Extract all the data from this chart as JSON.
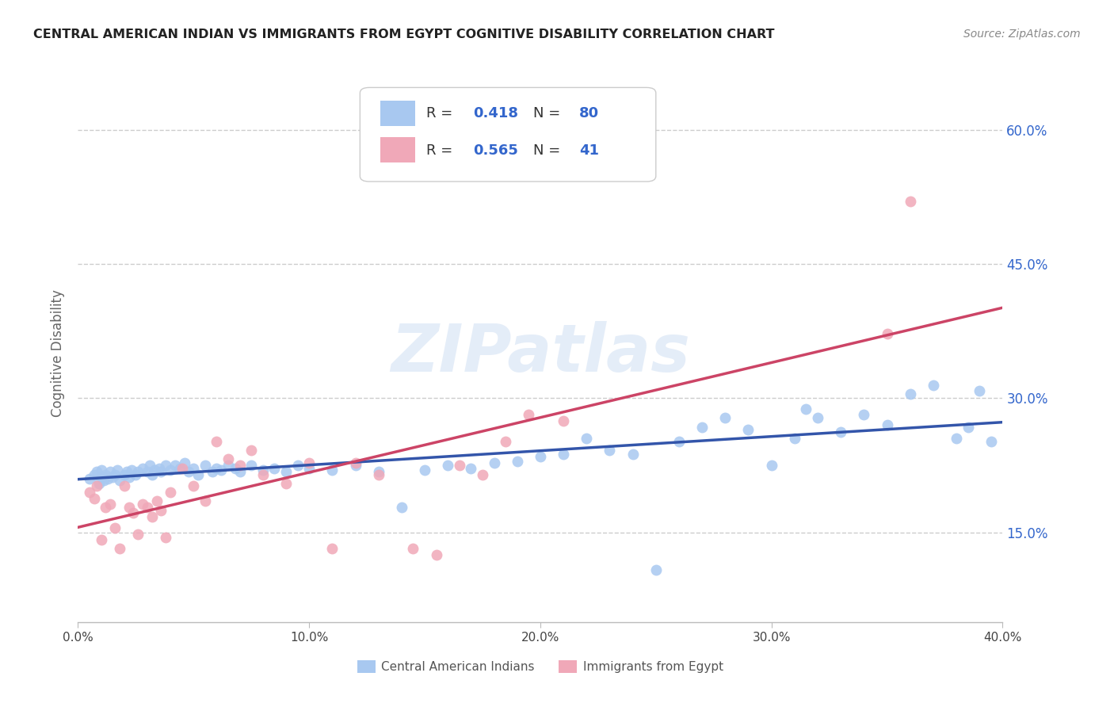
{
  "title": "CENTRAL AMERICAN INDIAN VS IMMIGRANTS FROM EGYPT COGNITIVE DISABILITY CORRELATION CHART",
  "source": "Source: ZipAtlas.com",
  "ylabel": "Cognitive Disability",
  "yticks_labels": [
    "15.0%",
    "30.0%",
    "45.0%",
    "60.0%"
  ],
  "ytick_vals": [
    0.15,
    0.3,
    0.45,
    0.6
  ],
  "xticks_labels": [
    "0.0%",
    "10.0%",
    "20.0%",
    "30.0%",
    "40.0%"
  ],
  "xtick_vals": [
    0.0,
    0.1,
    0.2,
    0.3,
    0.4
  ],
  "xmin": 0.0,
  "xmax": 0.4,
  "ymin": 0.05,
  "ymax": 0.65,
  "color_blue": "#A8C8F0",
  "color_pink": "#F0A8B8",
  "color_blue_line": "#3355AA",
  "color_pink_line": "#CC4466",
  "color_blue_text": "#3366CC",
  "label_blue": "Central American Indians",
  "label_pink": "Immigrants from Egypt",
  "watermark": "ZIPatlas",
  "background_color": "#FFFFFF",
  "grid_color": "#CCCCCC",
  "blue_x": [
    0.005,
    0.007,
    0.008,
    0.009,
    0.01,
    0.01,
    0.011,
    0.012,
    0.013,
    0.014,
    0.015,
    0.016,
    0.017,
    0.018,
    0.02,
    0.021,
    0.022,
    0.023,
    0.025,
    0.026,
    0.028,
    0.03,
    0.031,
    0.032,
    0.033,
    0.035,
    0.036,
    0.038,
    0.04,
    0.042,
    0.044,
    0.046,
    0.048,
    0.05,
    0.052,
    0.055,
    0.058,
    0.06,
    0.062,
    0.065,
    0.068,
    0.07,
    0.075,
    0.08,
    0.085,
    0.09,
    0.095,
    0.1,
    0.11,
    0.12,
    0.13,
    0.14,
    0.15,
    0.16,
    0.17,
    0.18,
    0.19,
    0.2,
    0.21,
    0.22,
    0.23,
    0.24,
    0.25,
    0.26,
    0.27,
    0.28,
    0.29,
    0.3,
    0.31,
    0.315,
    0.32,
    0.33,
    0.34,
    0.35,
    0.36,
    0.37,
    0.38,
    0.385,
    0.39,
    0.395
  ],
  "blue_y": [
    0.21,
    0.215,
    0.218,
    0.205,
    0.212,
    0.22,
    0.208,
    0.215,
    0.21,
    0.218,
    0.212,
    0.215,
    0.22,
    0.208,
    0.215,
    0.218,
    0.212,
    0.22,
    0.215,
    0.218,
    0.222,
    0.218,
    0.225,
    0.215,
    0.22,
    0.222,
    0.218,
    0.225,
    0.22,
    0.225,
    0.222,
    0.228,
    0.218,
    0.222,
    0.215,
    0.225,
    0.218,
    0.222,
    0.22,
    0.225,
    0.222,
    0.218,
    0.225,
    0.22,
    0.222,
    0.218,
    0.225,
    0.222,
    0.22,
    0.225,
    0.218,
    0.178,
    0.22,
    0.225,
    0.222,
    0.228,
    0.23,
    0.235,
    0.238,
    0.255,
    0.242,
    0.238,
    0.108,
    0.252,
    0.268,
    0.278,
    0.265,
    0.225,
    0.255,
    0.288,
    0.278,
    0.262,
    0.282,
    0.27,
    0.305,
    0.315,
    0.255,
    0.268,
    0.308,
    0.252
  ],
  "pink_x": [
    0.005,
    0.007,
    0.008,
    0.01,
    0.012,
    0.014,
    0.016,
    0.018,
    0.02,
    0.022,
    0.024,
    0.026,
    0.028,
    0.03,
    0.032,
    0.034,
    0.036,
    0.038,
    0.04,
    0.045,
    0.05,
    0.055,
    0.06,
    0.065,
    0.07,
    0.075,
    0.08,
    0.09,
    0.1,
    0.11,
    0.12,
    0.13,
    0.145,
    0.155,
    0.165,
    0.175,
    0.185,
    0.195,
    0.21,
    0.35,
    0.36
  ],
  "pink_y": [
    0.195,
    0.188,
    0.202,
    0.142,
    0.178,
    0.182,
    0.155,
    0.132,
    0.202,
    0.178,
    0.172,
    0.148,
    0.182,
    0.178,
    0.168,
    0.185,
    0.175,
    0.145,
    0.195,
    0.222,
    0.202,
    0.185,
    0.252,
    0.232,
    0.225,
    0.242,
    0.215,
    0.205,
    0.228,
    0.132,
    0.228,
    0.215,
    0.132,
    0.125,
    0.225,
    0.215,
    0.252,
    0.282,
    0.275,
    0.372,
    0.52
  ]
}
